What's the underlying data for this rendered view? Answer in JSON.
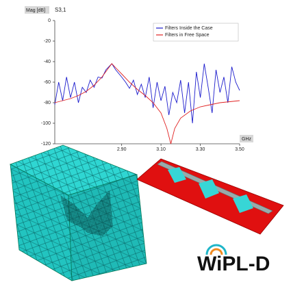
{
  "chart_data": {
    "type": "line",
    "ylabel": "Mag [dB]",
    "subtitle": "S3,1",
    "xlabel": "GHz",
    "xlim": [
      2.56,
      3.5
    ],
    "ylim": [
      -120,
      0
    ],
    "xticks": [
      {
        "value": 2.9,
        "label": "2.90"
      },
      {
        "value": 3.1,
        "label": "3.10"
      },
      {
        "value": 3.3,
        "label": "3.30"
      },
      {
        "value": 3.5,
        "label": "3.50"
      }
    ],
    "yticks": [
      0,
      -20,
      -40,
      -60,
      -80,
      -100,
      -120
    ],
    "grid": false,
    "legend": "upper right",
    "series": [
      {
        "name": "Filters Inside the Case",
        "color": "#1a1acc",
        "x": [
          2.56,
          2.58,
          2.6,
          2.62,
          2.64,
          2.66,
          2.68,
          2.7,
          2.72,
          2.74,
          2.76,
          2.78,
          2.8,
          2.82,
          2.85,
          2.87,
          2.9,
          2.92,
          2.94,
          2.96,
          2.98,
          3.0,
          3.02,
          3.04,
          3.06,
          3.08,
          3.1,
          3.12,
          3.14,
          3.16,
          3.18,
          3.2,
          3.22,
          3.24,
          3.26,
          3.28,
          3.3,
          3.32,
          3.34,
          3.36,
          3.38,
          3.4,
          3.42,
          3.44,
          3.46,
          3.48,
          3.5
        ],
        "values": [
          -82,
          -60,
          -78,
          -55,
          -75,
          -60,
          -80,
          -65,
          -70,
          -58,
          -65,
          -55,
          -56,
          -48,
          -42,
          -48,
          -55,
          -60,
          -66,
          -58,
          -72,
          -62,
          -75,
          -55,
          -85,
          -60,
          -78,
          -64,
          -92,
          -70,
          -80,
          -58,
          -90,
          -60,
          -100,
          -50,
          -75,
          -42,
          -65,
          -90,
          -48,
          -70,
          -55,
          -80,
          -45,
          -60,
          -68
        ]
      },
      {
        "name": "Filters in Free Space",
        "color": "#e02020",
        "x": [
          2.56,
          2.6,
          2.64,
          2.68,
          2.72,
          2.76,
          2.8,
          2.83,
          2.85,
          2.87,
          2.9,
          2.94,
          2.98,
          3.02,
          3.06,
          3.1,
          3.13,
          3.15,
          3.17,
          3.2,
          3.25,
          3.3,
          3.35,
          3.4,
          3.45,
          3.5
        ],
        "values": [
          -80,
          -78,
          -76,
          -73,
          -69,
          -63,
          -55,
          -47,
          -42,
          -46,
          -52,
          -60,
          -67,
          -73,
          -80,
          -90,
          -105,
          -120,
          -105,
          -95,
          -88,
          -84,
          -82,
          -80,
          -79,
          -78
        ]
      }
    ]
  },
  "logo": {
    "text": "WiPL-D"
  }
}
